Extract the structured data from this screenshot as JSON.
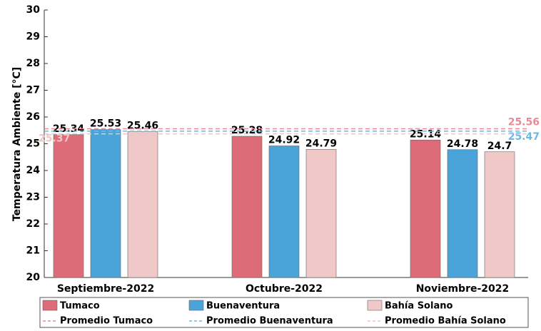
{
  "chart_data": {
    "type": "bar",
    "ylabel": "Temperatura Ambiente [°C]",
    "categories": [
      "Septiembre-2022",
      "Octubre-2022",
      "Noviembre-2022"
    ],
    "series": [
      {
        "name": "Tumaco",
        "color": "#dd6b78",
        "values": [
          25.34,
          25.28,
          25.14
        ]
      },
      {
        "name": "Buenaventura",
        "color": "#4aa3d9",
        "values": [
          25.53,
          24.92,
          24.78
        ]
      },
      {
        "name": "Bahía Solano",
        "color": "#f0c8c8",
        "values": [
          25.46,
          24.79,
          24.7
        ]
      }
    ],
    "averages": [
      {
        "name": "Promedio Tumaco",
        "color": "#e88a98",
        "value": 25.56
      },
      {
        "name": "Promedio Buenaventura",
        "color": "#6cb8e4",
        "value": 25.47
      },
      {
        "name": "Promedio Bahía Solano",
        "color": "#f2c4c4",
        "value": 25.37
      }
    ],
    "ylim": [
      20,
      30
    ],
    "yticks": [
      20,
      21,
      22,
      23,
      24,
      25,
      26,
      27,
      28,
      29,
      30
    ]
  }
}
